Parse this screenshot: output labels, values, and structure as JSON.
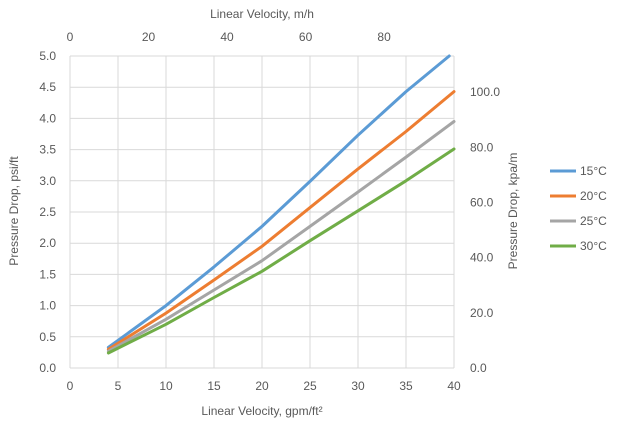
{
  "chart_data": {
    "type": "line",
    "title": "",
    "xlabel": "Linear Velocity, gpm/ft²",
    "ylabel": "Pressure Drop, psi/ft",
    "secondary_xlabel": "Linear Velocity, m/h",
    "secondary_ylabel": "Pressure Drop, kpa/m",
    "xlim": [
      0,
      40
    ],
    "ylim": [
      0,
      5.0
    ],
    "secondary_xlim": [
      0,
      97.8
    ],
    "secondary_ylim": [
      0,
      113.1
    ],
    "x_ticks": [
      "0",
      "5",
      "10",
      "15",
      "20",
      "25",
      "30",
      "35",
      "40"
    ],
    "y_ticks": [
      "0.0",
      "0.5",
      "1.0",
      "1.5",
      "2.0",
      "2.5",
      "3.0",
      "3.5",
      "4.0",
      "4.5",
      "5.0"
    ],
    "secondary_x_ticks": [
      "0",
      "20",
      "40",
      "60",
      "80"
    ],
    "secondary_y_ticks": [
      "0.0",
      "20.0",
      "40.0",
      "60.0",
      "80.0",
      "100.0"
    ],
    "grid": true,
    "legend_position": "right",
    "series": [
      {
        "name": "15°C",
        "color": "#5B9BD5",
        "x": [
          4,
          10,
          15,
          20,
          25,
          30,
          35,
          39.5
        ],
        "y": [
          0.33,
          1.0,
          1.62,
          2.27,
          2.99,
          3.73,
          4.43,
          5.0
        ]
      },
      {
        "name": "20°C",
        "color": "#ED7D31",
        "x": [
          4,
          10,
          15,
          20,
          25,
          30,
          35,
          40
        ],
        "y": [
          0.3,
          0.88,
          1.41,
          1.95,
          2.57,
          3.19,
          3.79,
          4.43
        ]
      },
      {
        "name": "25°C",
        "color": "#A5A5A5",
        "x": [
          4,
          10,
          15,
          20,
          25,
          30,
          35,
          40
        ],
        "y": [
          0.27,
          0.78,
          1.25,
          1.72,
          2.27,
          2.82,
          3.38,
          3.95
        ]
      },
      {
        "name": "30°C",
        "color": "#70AD47",
        "x": [
          4,
          10,
          15,
          20,
          25,
          30,
          35,
          40
        ],
        "y": [
          0.24,
          0.7,
          1.13,
          1.55,
          2.04,
          2.52,
          3.0,
          3.51
        ]
      }
    ]
  }
}
